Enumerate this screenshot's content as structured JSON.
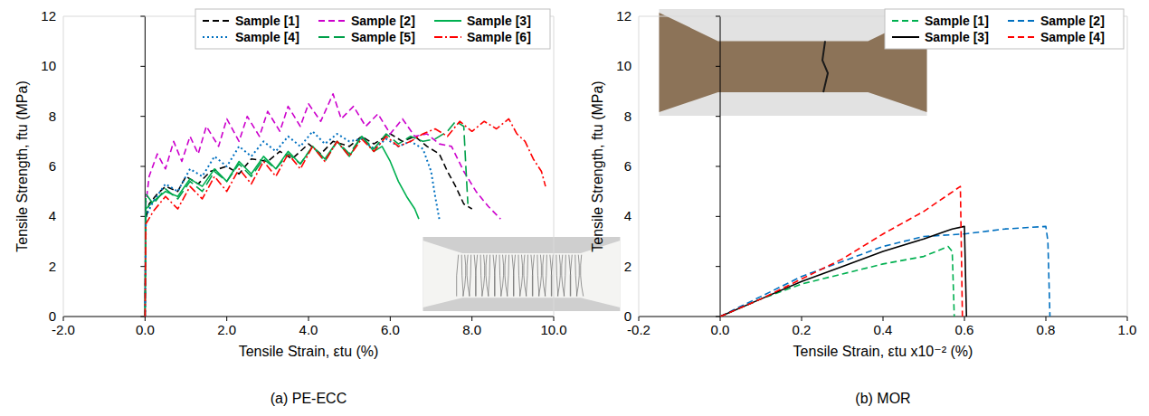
{
  "chart_data": [
    {
      "type": "line",
      "title": "(a)   PE-ECC",
      "x_label": "Tensile Strain, εtu (%)",
      "y_label": "Tensile Strength, ftu (MPa)",
      "xlim": [
        -2,
        10
      ],
      "ylim": [
        0,
        12
      ],
      "xticks": [
        {
          "value": -2,
          "label": "-2.0"
        },
        {
          "value": 0,
          "label": "0.0"
        },
        {
          "value": 2,
          "label": "2.0"
        },
        {
          "value": 4,
          "label": "4.0"
        },
        {
          "value": 6,
          "label": "6.0"
        },
        {
          "value": 8,
          "label": "8.0"
        },
        {
          "value": 10,
          "label": "10.0"
        }
      ],
      "yticks": [
        0,
        2,
        4,
        6,
        8,
        10,
        12
      ],
      "grid": false,
      "legend": "top-right",
      "series": [
        {
          "name": "Sample [1]",
          "color": "#000000",
          "line_style": "dashed",
          "x": [
            0,
            0.02,
            0.1,
            0.3,
            0.5,
            0.8,
            1.0,
            1.3,
            1.6,
            2.0,
            2.3,
            2.6,
            3.0,
            3.3,
            3.6,
            4.0,
            4.3,
            4.6,
            5.0,
            5.3,
            5.6,
            6.0,
            6.3,
            6.6,
            6.9,
            7.2,
            7.4,
            7.6,
            7.8,
            8.0
          ],
          "values": [
            0,
            3.9,
            4.5,
            4.9,
            5.2,
            5.0,
            5.6,
            5.3,
            5.8,
            6.0,
            5.7,
            6.3,
            6.2,
            6.6,
            6.3,
            6.9,
            6.5,
            7.0,
            6.8,
            7.2,
            6.9,
            7.3,
            7.0,
            7.2,
            6.8,
            6.5,
            5.8,
            5.2,
            4.5,
            4.3
          ]
        },
        {
          "name": "Sample [2]",
          "color": "#cc00cc",
          "line_style": "dashed",
          "x": [
            0,
            0.02,
            0.1,
            0.3,
            0.5,
            0.7,
            0.9,
            1.1,
            1.3,
            1.5,
            1.8,
            2.0,
            2.3,
            2.5,
            2.8,
            3.0,
            3.3,
            3.5,
            3.8,
            4.0,
            4.3,
            4.6,
            4.8,
            5.1,
            5.4,
            5.7,
            6.0,
            6.3,
            6.6,
            6.9,
            7.2,
            7.5,
            7.8,
            8.1,
            8.4,
            8.7
          ],
          "values": [
            0,
            4.5,
            5.6,
            6.5,
            5.9,
            7.0,
            6.2,
            7.2,
            6.5,
            7.6,
            6.8,
            7.9,
            7.0,
            8.0,
            7.2,
            8.2,
            7.4,
            8.4,
            7.6,
            8.5,
            7.8,
            8.9,
            7.9,
            8.4,
            7.6,
            8.1,
            7.3,
            7.9,
            7.2,
            7.3,
            6.9,
            6.8,
            5.8,
            5.0,
            4.4,
            3.9
          ]
        },
        {
          "name": "Sample [3]",
          "color": "#00b050",
          "line_style": "solid",
          "x": [
            0,
            0.02,
            0.2,
            0.5,
            0.8,
            1.1,
            1.4,
            1.7,
            2.0,
            2.3,
            2.6,
            2.9,
            3.2,
            3.5,
            3.8,
            4.1,
            4.4,
            4.7,
            5.0,
            5.3,
            5.6,
            5.8,
            6.0,
            6.2,
            6.4,
            6.6,
            6.7
          ],
          "values": [
            0,
            4.3,
            4.6,
            5.0,
            4.8,
            5.5,
            5.2,
            5.9,
            5.4,
            6.2,
            5.7,
            6.4,
            5.9,
            6.6,
            6.1,
            6.8,
            6.3,
            7.0,
            6.4,
            7.2,
            6.6,
            6.8,
            6.2,
            5.4,
            4.8,
            4.3,
            3.9
          ]
        },
        {
          "name": "Sample [4]",
          "color": "#0070c0",
          "line_style": "dotted",
          "x": [
            0,
            0.02,
            0.2,
            0.5,
            0.8,
            1.1,
            1.4,
            1.7,
            2.0,
            2.3,
            2.6,
            2.9,
            3.2,
            3.5,
            3.8,
            4.1,
            4.4,
            4.7,
            5.0,
            5.3,
            5.6,
            5.9,
            6.2,
            6.5,
            6.8,
            7.0,
            7.1,
            7.2
          ],
          "values": [
            0,
            4.0,
            4.6,
            5.3,
            5.0,
            5.9,
            5.6,
            6.4,
            6.0,
            6.8,
            6.4,
            7.0,
            6.6,
            7.2,
            6.8,
            7.4,
            6.9,
            7.3,
            7.0,
            7.1,
            6.7,
            7.1,
            6.8,
            7.0,
            6.7,
            5.8,
            4.8,
            3.9
          ]
        },
        {
          "name": "Sample [5]",
          "color": "#00a04a",
          "line_style": "longdash",
          "x": [
            0,
            0.02,
            0.2,
            0.5,
            0.8,
            1.1,
            1.4,
            1.7,
            2.0,
            2.3,
            2.6,
            2.9,
            3.2,
            3.5,
            3.8,
            4.1,
            4.4,
            4.7,
            5.0,
            5.3,
            5.6,
            5.9,
            6.2,
            6.5,
            6.8,
            7.1,
            7.4,
            7.6,
            7.8,
            7.85,
            7.9
          ],
          "values": [
            0,
            4.9,
            4.5,
            5.1,
            4.7,
            5.4,
            5.0,
            5.8,
            5.4,
            6.1,
            5.6,
            6.3,
            5.9,
            6.5,
            6.1,
            6.8,
            6.2,
            7.0,
            6.5,
            7.2,
            6.7,
            7.3,
            6.9,
            7.2,
            7.0,
            7.1,
            7.4,
            7.8,
            7.6,
            6.0,
            4.5
          ]
        },
        {
          "name": "Sample [6]",
          "color": "#ff0000",
          "line_style": "dashdot",
          "x": [
            0,
            0.02,
            0.2,
            0.5,
            0.8,
            1.1,
            1.4,
            1.7,
            2.0,
            2.3,
            2.6,
            2.9,
            3.2,
            3.5,
            3.8,
            4.1,
            4.4,
            4.7,
            5.0,
            5.3,
            5.6,
            5.9,
            6.2,
            6.5,
            6.8,
            7.1,
            7.4,
            7.7,
            8.0,
            8.3,
            8.6,
            8.9,
            9.1,
            9.3,
            9.5,
            9.7,
            9.8
          ],
          "values": [
            0,
            3.7,
            4.2,
            4.8,
            4.3,
            5.2,
            4.7,
            5.6,
            5.0,
            5.9,
            5.3,
            6.2,
            5.6,
            6.5,
            5.9,
            6.8,
            6.2,
            7.0,
            6.4,
            7.1,
            6.6,
            7.2,
            6.8,
            7.0,
            7.3,
            7.5,
            7.2,
            7.8,
            7.4,
            7.8,
            7.5,
            7.9,
            7.3,
            7.0,
            6.3,
            5.8,
            5.2
          ]
        }
      ]
    },
    {
      "type": "line",
      "title": "(b)   MOR",
      "x_label": "Tensile Strain, εtu x10⁻² (%)",
      "y_label": "Tensile Strength, ftu (MPa)",
      "xlim": [
        -0.2,
        1
      ],
      "ylim": [
        0,
        12
      ],
      "xticks": [
        -0.2,
        {
          "value": 0,
          "label": "0.0"
        },
        0.2,
        0.4,
        0.6,
        0.8,
        {
          "value": 1,
          "label": "1.0"
        }
      ],
      "yticks": [
        0,
        2,
        4,
        6,
        8,
        10,
        12
      ],
      "grid": false,
      "legend": "top-right",
      "series": [
        {
          "name": "Sample [1]",
          "color": "#00b050",
          "line_style": "dashed",
          "x": [
            0,
            0.1,
            0.2,
            0.3,
            0.4,
            0.5,
            0.56,
            0.57,
            0.575
          ],
          "values": [
            0,
            0.7,
            1.3,
            1.7,
            2.1,
            2.4,
            2.8,
            2.6,
            0
          ]
        },
        {
          "name": "Sample [2]",
          "color": "#0070c0",
          "line_style": "dashed",
          "x": [
            0,
            0.1,
            0.2,
            0.3,
            0.4,
            0.5,
            0.6,
            0.7,
            0.8,
            0.805,
            0.81
          ],
          "values": [
            0,
            0.8,
            1.6,
            2.2,
            2.8,
            3.2,
            3.3,
            3.5,
            3.6,
            3.0,
            0
          ]
        },
        {
          "name": "Sample [3]",
          "color": "#000000",
          "line_style": "solid",
          "x": [
            0,
            0.1,
            0.2,
            0.3,
            0.4,
            0.5,
            0.57,
            0.6,
            0.605
          ],
          "values": [
            0,
            0.7,
            1.4,
            2.0,
            2.6,
            3.1,
            3.5,
            3.6,
            0
          ]
        },
        {
          "name": "Sample [4]",
          "color": "#ff0000",
          "line_style": "dashed",
          "x": [
            0,
            0.1,
            0.2,
            0.3,
            0.4,
            0.5,
            0.59,
            0.595
          ],
          "values": [
            0,
            0.7,
            1.5,
            2.3,
            3.3,
            4.2,
            5.2,
            0
          ]
        }
      ]
    }
  ]
}
